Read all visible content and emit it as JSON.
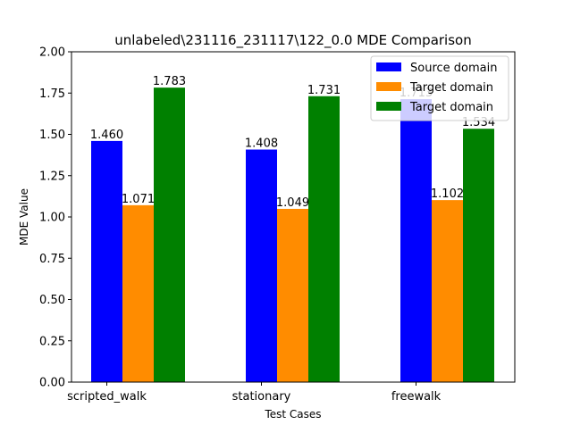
{
  "chart_data": {
    "type": "bar",
    "title": "unlabeled\\231116_231117\\122_0.0 MDE Comparison",
    "xlabel": "Test Cases",
    "ylabel": "MDE Value",
    "ylim": [
      0,
      2.0
    ],
    "yticks": [
      "0.00",
      "0.25",
      "0.50",
      "0.75",
      "1.00",
      "1.25",
      "1.50",
      "1.75",
      "2.00"
    ],
    "categories": [
      "scripted_walk",
      "stationary",
      "freewalk"
    ],
    "grid": false,
    "legend_position": "top-right",
    "series": [
      {
        "name": "Source domain",
        "color": "#0000ff",
        "values": [
          1.46,
          1.408,
          1.713
        ],
        "labels": [
          "1.460",
          "1.408",
          "1.713"
        ]
      },
      {
        "name": "Target domain",
        "color": "#ff8c00",
        "values": [
          1.071,
          1.049,
          1.102
        ],
        "labels": [
          "1.071",
          "1.049",
          "1.102"
        ]
      },
      {
        "name": "Target domain",
        "color": "#008000",
        "values": [
          1.783,
          1.731,
          1.534
        ],
        "labels": [
          "1.783",
          "1.731",
          "1.534"
        ]
      }
    ]
  }
}
